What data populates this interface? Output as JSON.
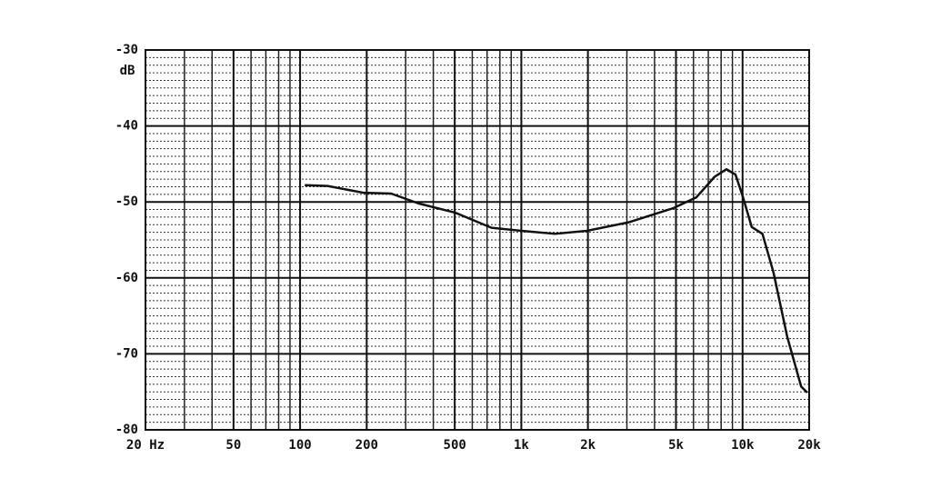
{
  "chart_data": {
    "type": "line",
    "y_label": "dB",
    "log_x": true,
    "x": [
      105,
      133,
      194,
      258,
      343,
      501,
      733,
      1000,
      1420,
      1980,
      3040,
      4880,
      6180,
      7470,
      8450,
      9290,
      10000,
      11000,
      12300,
      13800,
      15900,
      18400,
      19600
    ],
    "series": [
      {
        "color": "#111111",
        "values": [
          -47.8,
          -47.9,
          -48.8,
          -48.9,
          -50.2,
          -51.4,
          -53.4,
          -53.8,
          -54.2,
          -53.8,
          -52.7,
          -50.8,
          -49.4,
          -46.7,
          -45.7,
          -46.4,
          -49.2,
          -53.3,
          -54.2,
          -59.3,
          -67.7,
          -74.3,
          -75.1
        ]
      }
    ],
    "xlim": [
      20,
      20000
    ],
    "xticks": [
      {
        "value": 20,
        "label": "20 Hz"
      },
      50,
      100,
      200,
      500,
      {
        "value": 1000,
        "label": "1k"
      },
      {
        "value": 2000,
        "label": "2k"
      },
      {
        "value": 5000,
        "label": "5k"
      },
      {
        "value": 10000,
        "label": "10k"
      },
      {
        "value": 20000,
        "label": "20k"
      }
    ],
    "ylim": [
      -80,
      -30
    ],
    "yticks": [
      -30,
      -40,
      -50,
      -60,
      -70,
      -80
    ],
    "grid": true
  }
}
